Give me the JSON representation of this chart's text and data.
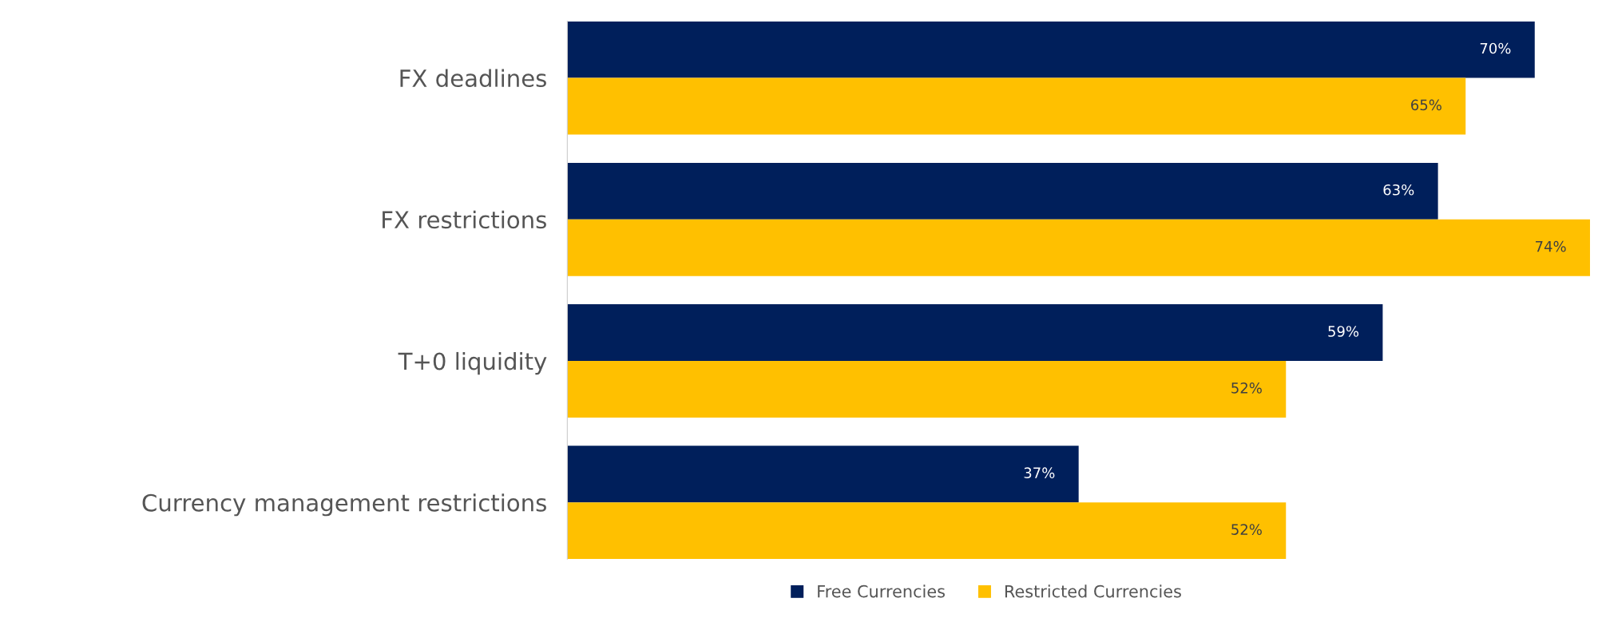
{
  "chart_data": {
    "type": "bar",
    "orientation": "horizontal",
    "tick_labels": "y",
    "legend": "bottom",
    "categories": [
      "FX deadlines",
      "FX restrictions",
      "T+0 liquidity",
      "Currency management restrictions"
    ],
    "series": [
      {
        "name": "Free Currencies",
        "color": "#001f5b",
        "values": [
          70,
          63,
          59,
          37
        ],
        "value_labels": [
          "70%",
          "63%",
          "59%",
          "37%"
        ]
      },
      {
        "name": "Restricted Currencies",
        "color": "#ffc000",
        "values": [
          65,
          74,
          52,
          52
        ],
        "value_labels": [
          "65%",
          "74%",
          "52%",
          "52%"
        ]
      }
    ]
  }
}
